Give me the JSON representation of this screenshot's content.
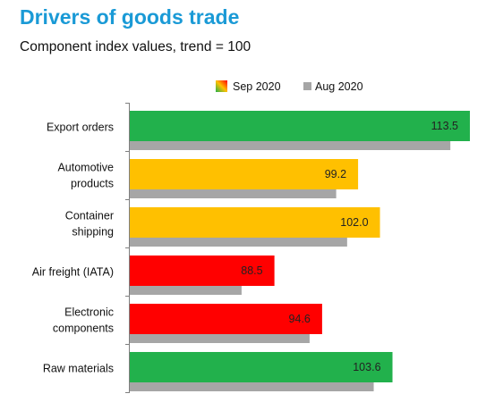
{
  "chart_data": {
    "type": "bar",
    "orientation": "horizontal",
    "title": "Drivers of goods trade",
    "subtitle": "Component index values, trend = 100",
    "categories": [
      [
        "Export orders"
      ],
      [
        "Automotive",
        "products"
      ],
      [
        "Container",
        "shipping"
      ],
      [
        "Air freight (IATA)"
      ],
      [
        "Electronic",
        "components"
      ],
      [
        "Raw materials"
      ]
    ],
    "series": [
      {
        "name": "Sep 2020",
        "values": [
          113.5,
          99.2,
          102.0,
          88.5,
          94.6,
          103.6
        ],
        "value_labels": [
          "113.5",
          "99.2",
          "102.0",
          "88.5",
          "94.6",
          "103.6"
        ],
        "colors": [
          "#22b14c",
          "#ffc000",
          "#ffc000",
          "#ff0000",
          "#ff0000",
          "#22b14c"
        ]
      },
      {
        "name": "Aug 2020",
        "values": [
          111.0,
          96.4,
          97.8,
          84.3,
          93.0,
          101.2
        ],
        "color": "#a6a6a6"
      }
    ],
    "xlim": [
      70,
      115
    ],
    "legend_position": "top",
    "grid": false
  }
}
